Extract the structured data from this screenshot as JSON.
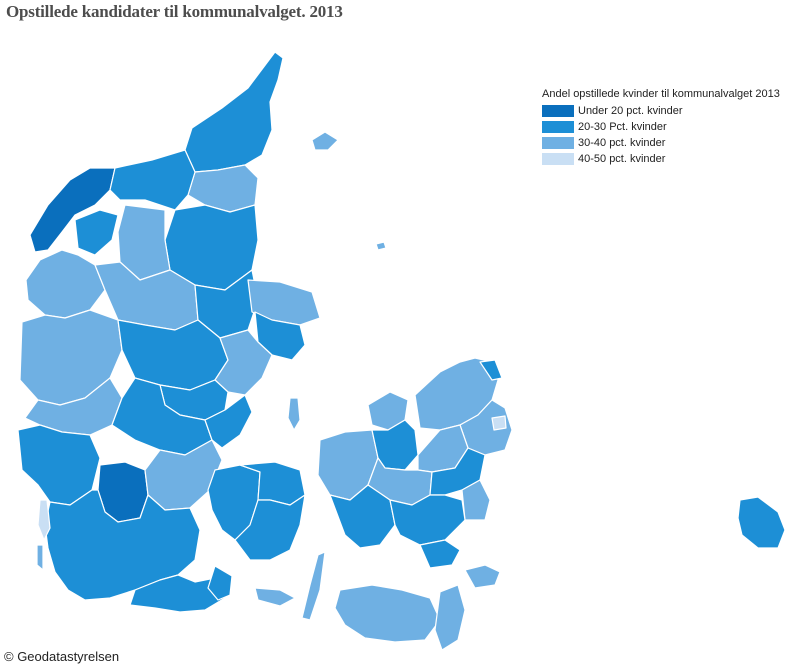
{
  "title": "Opstillede kandidater til kommunalvalget. 2013",
  "legend": {
    "title": "Andel opstillede kvinder til kommunalvalget 2013",
    "items": [
      {
        "label": "Under 20 pct. kvinder",
        "color": "#0a6fbd"
      },
      {
        "label": "20-30 Pct. kvinder",
        "color": "#1d8fd6"
      },
      {
        "label": "30-40 pct. kvinder",
        "color": "#6fb0e3"
      },
      {
        "label": "40-50 pct. kvinder",
        "color": "#c9dff4"
      }
    ]
  },
  "credit": "© Geodatastyrelsen"
}
